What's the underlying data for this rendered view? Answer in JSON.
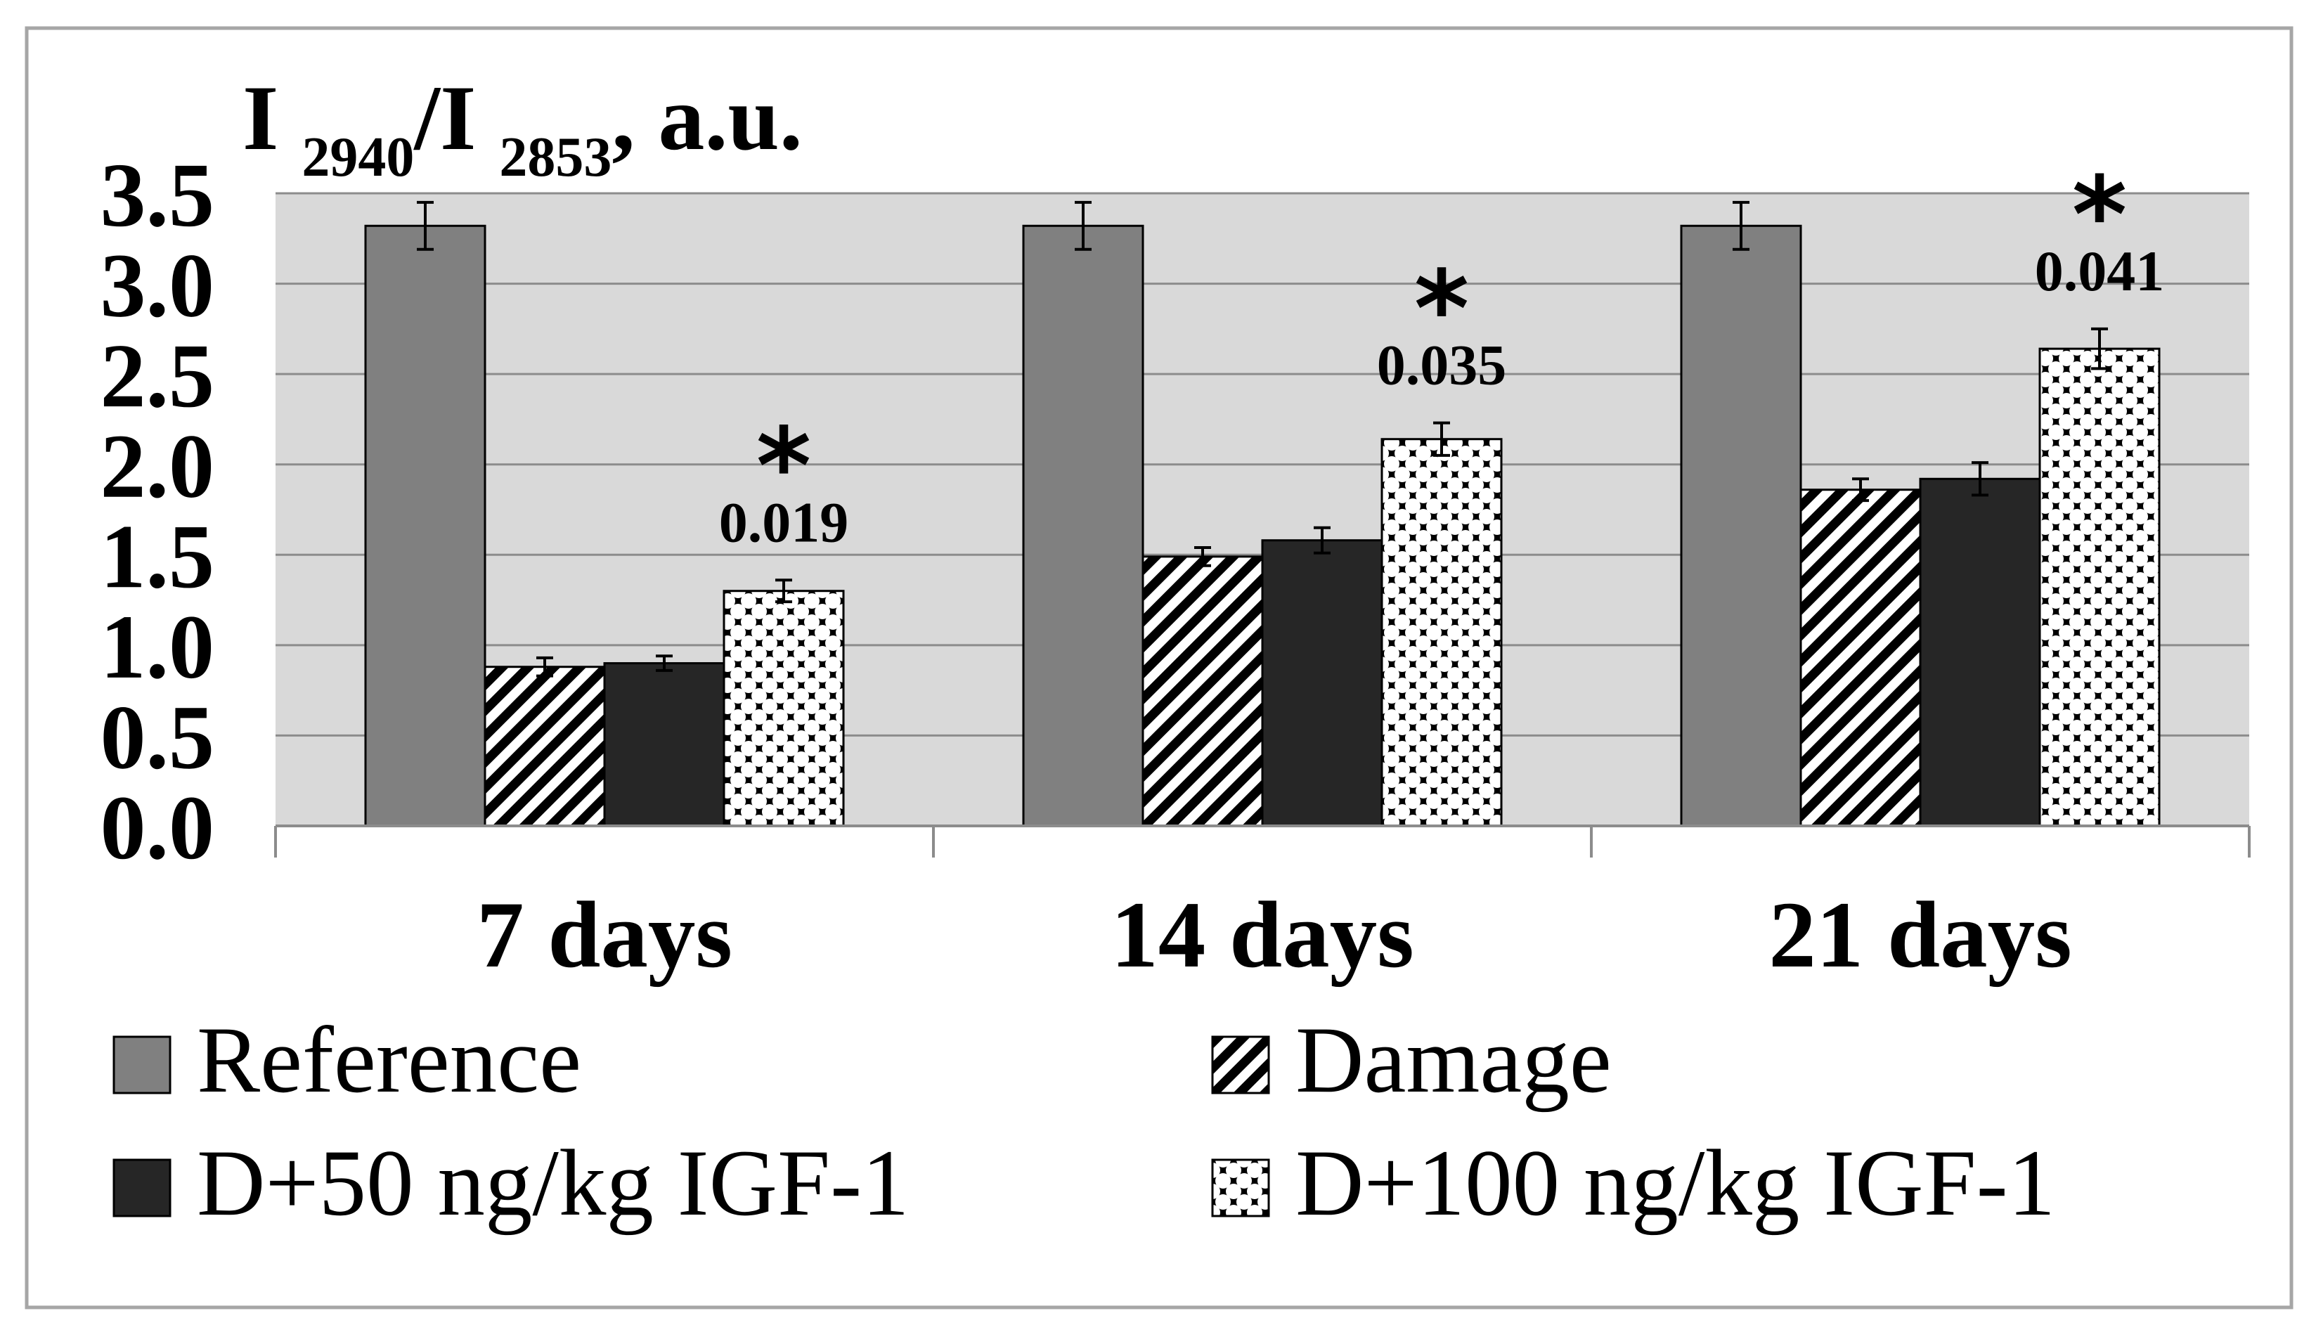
{
  "chart_data": {
    "type": "bar",
    "title": "I 2940/I 2853, a.u.",
    "title_parts": {
      "main1": "I ",
      "sub1": "2940",
      "main2": "/I ",
      "sub2": "2853",
      "tail": ", a.u."
    },
    "ylabel": "I 2940/I 2853, a.u.",
    "xlabel": "",
    "ylim": [
      0,
      3.5
    ],
    "yticks": [
      "0.0",
      "0.5",
      "1.0",
      "1.5",
      "2.0",
      "2.5",
      "3.0",
      "3.5"
    ],
    "ytick_values": [
      0,
      0.5,
      1.0,
      1.5,
      2.0,
      2.5,
      3.0,
      3.5
    ],
    "grid": true,
    "legend_position": "bottom",
    "categories": [
      "7 days",
      "14 days",
      "21 days"
    ],
    "series": [
      {
        "name": "Reference",
        "pattern": "solid-gray",
        "values": [
          3.32,
          3.32,
          3.32
        ],
        "errors": [
          0.13,
          0.13,
          0.13
        ]
      },
      {
        "name": "Damage",
        "pattern": "diagonal-stripes",
        "values": [
          0.88,
          1.49,
          1.86
        ],
        "errors": [
          0.05,
          0.05,
          0.06
        ]
      },
      {
        "name": "D+50 ng/kg IGF-1",
        "pattern": "solid-dark",
        "values": [
          0.9,
          1.58,
          1.92
        ],
        "errors": [
          0.04,
          0.07,
          0.09
        ]
      },
      {
        "name": "D+100 ng/kg IGF-1",
        "pattern": "checker-dots",
        "values": [
          1.3,
          2.14,
          2.64
        ],
        "errors": [
          0.06,
          0.09,
          0.11
        ]
      }
    ],
    "annotations": [
      {
        "category": "7 days",
        "series": "D+100 ng/kg IGF-1",
        "marker": "*",
        "p_value": "0.019"
      },
      {
        "category": "14 days",
        "series": "D+100 ng/kg IGF-1",
        "marker": "*",
        "p_value": "0.035"
      },
      {
        "category": "21 days",
        "series": "D+100 ng/kg IGF-1",
        "marker": "*",
        "p_value": "0.041"
      }
    ]
  },
  "colors": {
    "plot_background": "#d9d9d9",
    "reference": "#808080",
    "dark": "#262626",
    "gridline": "#8c8c8c",
    "frame": "#a6a6a6"
  }
}
